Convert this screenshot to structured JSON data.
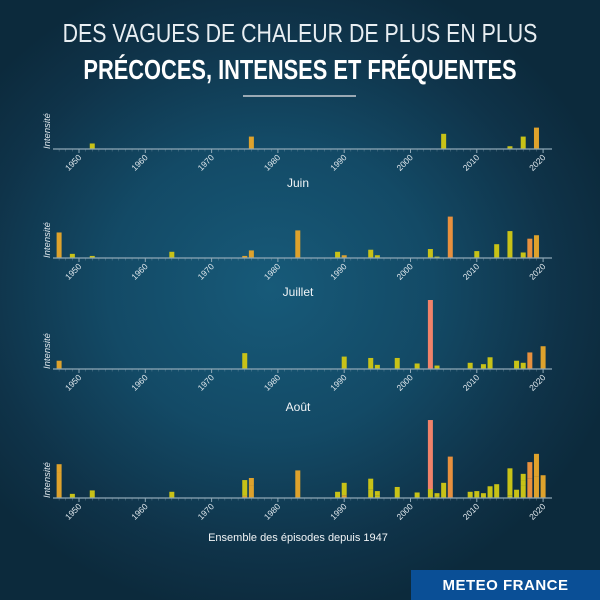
{
  "header": {
    "title_line1": "DES VAGUES DE CHALEUR DE PLUS EN PLUS",
    "title_line2": "PRÉCOCES, INTENSES ET FRÉQUENTES"
  },
  "footer": {
    "brand": "METEO FRANCE"
  },
  "colors": {
    "background": "#134a66",
    "yellow": "#c8c217",
    "orange": "#dea22c",
    "dark_orange": "#e8903e",
    "red": "#f0826a",
    "axis": "#8fa8b6",
    "brand": "#0a4f96"
  },
  "chart_data": [
    {
      "type": "bar",
      "title": "Juin",
      "ylabel": "Intensité",
      "xlim": [
        1946,
        2021
      ],
      "xticks": [
        1950,
        1960,
        1970,
        1980,
        1990,
        2000,
        2010,
        2020
      ],
      "bars": [
        {
          "year": 1952,
          "value": 8,
          "color": "yellow"
        },
        {
          "year": 1976,
          "value": 18,
          "color": "orange"
        },
        {
          "year": 2005,
          "value": 22,
          "color": "yellow"
        },
        {
          "year": 2015,
          "value": 4,
          "color": "yellow"
        },
        {
          "year": 2017,
          "value": 18,
          "color": "yellow"
        },
        {
          "year": 2019,
          "value": 31,
          "color": "orange"
        }
      ]
    },
    {
      "type": "bar",
      "title": "Juillet",
      "ylabel": "Intensité",
      "xlim": [
        1946,
        2021
      ],
      "xticks": [
        1950,
        1960,
        1970,
        1980,
        1990,
        2000,
        2010,
        2020
      ],
      "bars": [
        {
          "year": 1947,
          "value": 37,
          "color": "orange"
        },
        {
          "year": 1949,
          "value": 6,
          "color": "yellow"
        },
        {
          "year": 1952,
          "value": 3,
          "color": "yellow"
        },
        {
          "year": 1964,
          "value": 9,
          "color": "yellow"
        },
        {
          "year": 1975,
          "value": 3,
          "color": "orange"
        },
        {
          "year": 1976,
          "value": 11,
          "color": "orange"
        },
        {
          "year": 1983,
          "value": 40,
          "color": "orange"
        },
        {
          "year": 1989,
          "value": 9,
          "color": "yellow"
        },
        {
          "year": 1990,
          "value": 4,
          "color": "orange"
        },
        {
          "year": 1994,
          "value": 12,
          "color": "yellow"
        },
        {
          "year": 1995,
          "value": 4,
          "color": "yellow"
        },
        {
          "year": 2003,
          "value": 13,
          "color": "yellow"
        },
        {
          "year": 2004,
          "value": 2,
          "color": "yellow"
        },
        {
          "year": 2006,
          "value": 60,
          "color": "dark_orange"
        },
        {
          "year": 2010,
          "value": 10,
          "color": "yellow"
        },
        {
          "year": 2013,
          "value": 20,
          "color": "yellow"
        },
        {
          "year": 2015,
          "value": 39,
          "color": "yellow"
        },
        {
          "year": 2017,
          "value": 8,
          "color": "yellow"
        },
        {
          "year": 2018,
          "value": 28,
          "color": "dark_orange"
        },
        {
          "year": 2019,
          "value": 33,
          "color": "orange"
        }
      ]
    },
    {
      "type": "bar",
      "title": "Août",
      "ylabel": "Intensité",
      "xlim": [
        1946,
        2021
      ],
      "xticks": [
        1950,
        1960,
        1970,
        1980,
        1990,
        2000,
        2010,
        2020
      ],
      "bars": [
        {
          "year": 1947,
          "value": 12,
          "color": "orange"
        },
        {
          "year": 1975,
          "value": 23,
          "color": "yellow"
        },
        {
          "year": 1990,
          "value": 18,
          "color": "yellow"
        },
        {
          "year": 1994,
          "value": 16,
          "color": "yellow"
        },
        {
          "year": 1995,
          "value": 6,
          "color": "yellow"
        },
        {
          "year": 1998,
          "value": 16,
          "color": "yellow"
        },
        {
          "year": 2001,
          "value": 8,
          "color": "yellow"
        },
        {
          "year": 2003,
          "value": 100,
          "color": "red"
        },
        {
          "year": 2004,
          "value": 5,
          "color": "yellow"
        },
        {
          "year": 2009,
          "value": 9,
          "color": "yellow"
        },
        {
          "year": 2011,
          "value": 7,
          "color": "yellow"
        },
        {
          "year": 2012,
          "value": 17,
          "color": "yellow"
        },
        {
          "year": 2016,
          "value": 12,
          "color": "yellow"
        },
        {
          "year": 2017,
          "value": 9,
          "color": "yellow"
        },
        {
          "year": 2018,
          "value": 24,
          "color": "dark_orange"
        },
        {
          "year": 2020,
          "value": 33,
          "color": "orange"
        }
      ]
    },
    {
      "type": "stacked-bar",
      "title": "Ensemble des épisodes depuis 1947",
      "ylabel": "Intensité",
      "xlim": [
        1946,
        2021
      ],
      "xticks": [
        1950,
        1960,
        1970,
        1980,
        1990,
        2000,
        2010,
        2020
      ],
      "stack_of": [
        "Juin",
        "Juillet",
        "Août"
      ]
    }
  ]
}
